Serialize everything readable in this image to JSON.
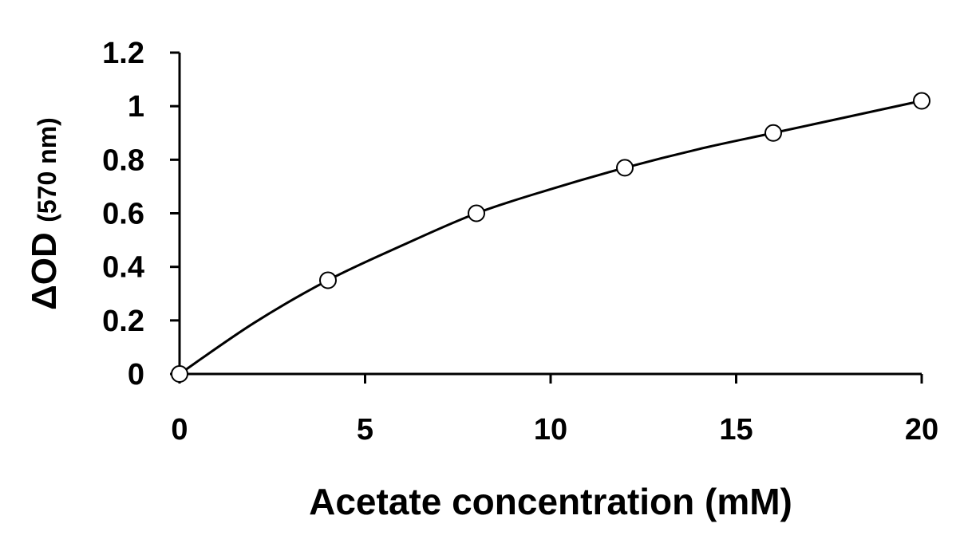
{
  "chart_data": {
    "type": "scatter",
    "title": "",
    "xlabel": "Acetate concentration (mM)",
    "ylabel": {
      "main": "ΔOD",
      "sub": "(570 nm)"
    },
    "xlim": [
      0,
      20
    ],
    "ylim": [
      0,
      1.2
    ],
    "xticks": [
      "0",
      "5",
      "10",
      "15",
      "20"
    ],
    "xtick_values": [
      0,
      5,
      10,
      15,
      20
    ],
    "yticks": [
      "0",
      "0.2",
      "0.4",
      "0.6",
      "0.8",
      "1",
      "1.2"
    ],
    "ytick_values": [
      0,
      0.2,
      0.4,
      0.6,
      0.8,
      1.0,
      1.2
    ],
    "grid": false,
    "legend": "none",
    "series": [
      {
        "marker": "open-circle",
        "x": [
          0,
          4,
          8,
          12,
          16,
          20
        ],
        "y": [
          0.0,
          0.35,
          0.6,
          0.77,
          0.9,
          1.02
        ]
      }
    ],
    "fit_curve": {
      "type": "smooth-curve",
      "x": [
        0,
        2,
        4,
        6,
        8,
        10,
        12,
        14,
        16,
        18,
        20
      ],
      "y": [
        0.0,
        0.19,
        0.35,
        0.48,
        0.6,
        0.69,
        0.77,
        0.84,
        0.9,
        0.96,
        1.02
      ]
    },
    "colors": {
      "axis": "#000000",
      "line": "#000000",
      "marker_fill": "#ffffff"
    }
  }
}
